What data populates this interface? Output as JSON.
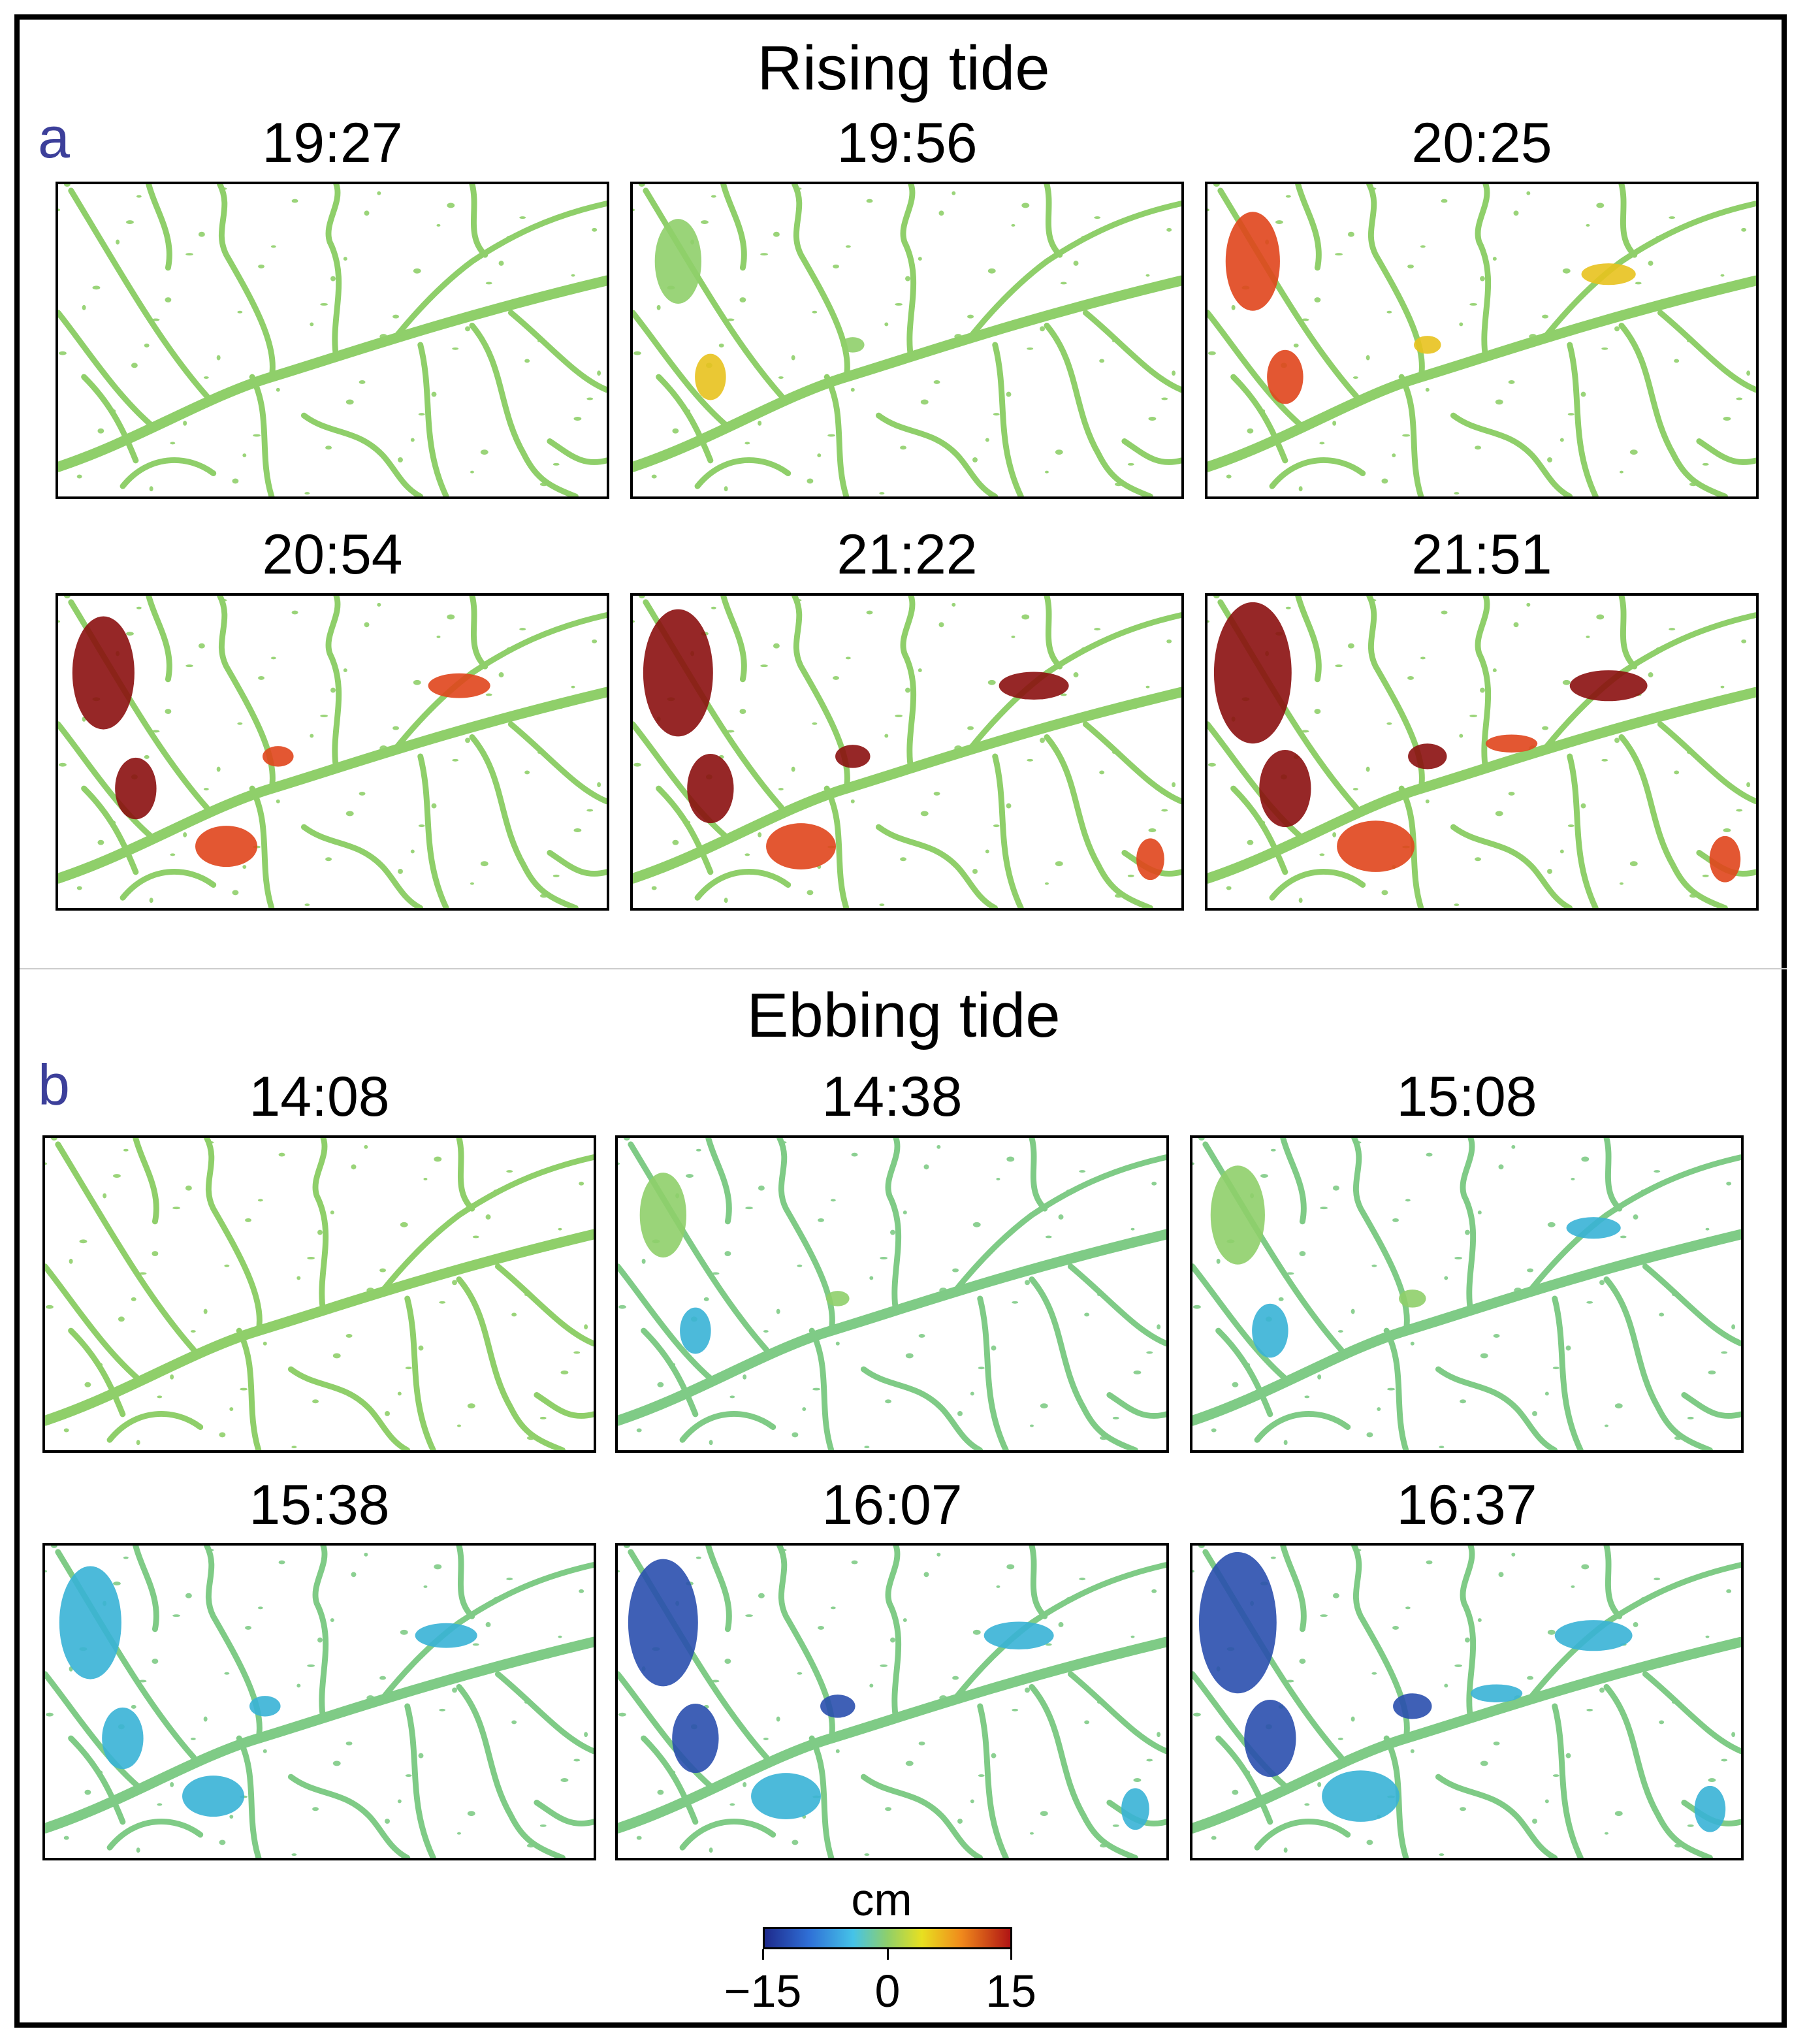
{
  "sections": {
    "rising": {
      "title": "Rising tide",
      "letter": "a"
    },
    "ebbing": {
      "title": "Ebbing tide",
      "letter": "b"
    }
  },
  "rising_maps": [
    {
      "time": "19:27",
      "stage": 0
    },
    {
      "time": "19:56",
      "stage": 1
    },
    {
      "time": "20:25",
      "stage": 2
    },
    {
      "time": "20:54",
      "stage": 3
    },
    {
      "time": "21:22",
      "stage": 4
    },
    {
      "time": "21:51",
      "stage": 5
    }
  ],
  "ebbing_maps": [
    {
      "time": "14:08",
      "stage": 0
    },
    {
      "time": "14:38",
      "stage": 1
    },
    {
      "time": "15:08",
      "stage": 2
    },
    {
      "time": "15:38",
      "stage": 3
    },
    {
      "time": "16:07",
      "stage": 4
    },
    {
      "time": "16:37",
      "stage": 5
    }
  ],
  "colorbar": {
    "unit": "cm",
    "min_label": "−15",
    "mid_label": "0",
    "max_label": "15",
    "min": -15,
    "max": 15
  },
  "colors": {
    "neutral": "#8fcf6a",
    "cool": "#39b3d6",
    "deep_cool": "#2a4fae",
    "warm": "#e8c21e",
    "hot": "#e0451c",
    "deep_hot": "#8b1010",
    "letter": "#3c3f9a"
  }
}
